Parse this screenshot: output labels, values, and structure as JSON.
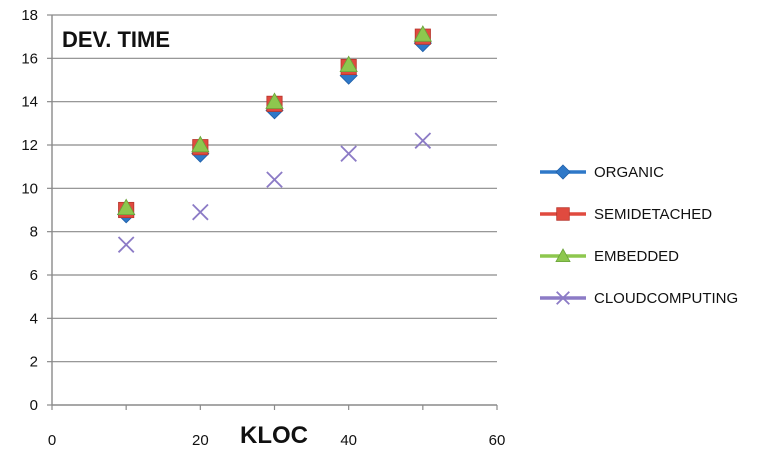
{
  "chart_data": {
    "type": "scatter",
    "title": "DEV. TIME",
    "xlabel": "KLOC",
    "ylabel": "",
    "xlim": [
      0,
      60
    ],
    "ylim": [
      0,
      18
    ],
    "xticks": [
      0,
      20,
      40,
      60
    ],
    "yticks": [
      0,
      2,
      4,
      6,
      8,
      10,
      12,
      14,
      16,
      18
    ],
    "grid": "horizontal",
    "legend_position": "right",
    "x": [
      10,
      20,
      30,
      40,
      50
    ],
    "series": [
      {
        "name": "ORGANIC",
        "marker": "diamond",
        "color": "#2e78c8",
        "values": [
          8.8,
          11.6,
          13.6,
          15.2,
          16.7
        ]
      },
      {
        "name": "SEMIDETACHED",
        "marker": "square",
        "color": "#e04a3f",
        "values": [
          9.0,
          11.9,
          13.9,
          15.6,
          17.0
        ]
      },
      {
        "name": "EMBEDDED",
        "marker": "triangle",
        "color": "#8dc74e",
        "values": [
          9.1,
          12.0,
          14.0,
          15.7,
          17.1
        ]
      },
      {
        "name": "CLOUDCOMPUTING",
        "marker": "x",
        "color": "#8c7bc6",
        "values": [
          7.4,
          8.9,
          10.4,
          11.6,
          12.2
        ]
      }
    ]
  }
}
